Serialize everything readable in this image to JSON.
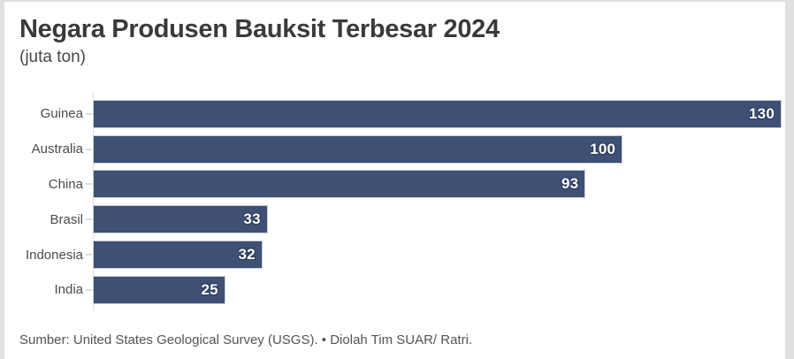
{
  "chart_data": {
    "type": "bar",
    "orientation": "horizontal",
    "title": "Negara Produsen Bauksit Terbesar 2024",
    "subtitle": "(juta ton)",
    "categories": [
      "Guinea",
      "Australia",
      "China",
      "Brasil",
      "Indonesia",
      "India"
    ],
    "values": [
      130,
      100,
      93,
      33,
      32,
      25
    ],
    "xlabel": "",
    "ylabel": "",
    "xlim": [
      0,
      130
    ],
    "grid": false,
    "legend": false,
    "value_label_position": "inside-end",
    "source": "Sumber: United States Geological Survey (USGS). • Diolah Tim SUAR/ Ratri."
  },
  "colors": {
    "bar": "#3F5074",
    "bar_border": "#C9CEDB",
    "value_text": "#FFFFFF",
    "value_outline": "#2F3D5E",
    "title_text": "#3A3A3A",
    "subtitle_text": "#474747",
    "category_label_text": "#4A4A4A",
    "source_text": "#545454",
    "axis_line": "#E2E2E2",
    "card_background": "#FFFFFF",
    "page_background": "#E0E0E0"
  }
}
